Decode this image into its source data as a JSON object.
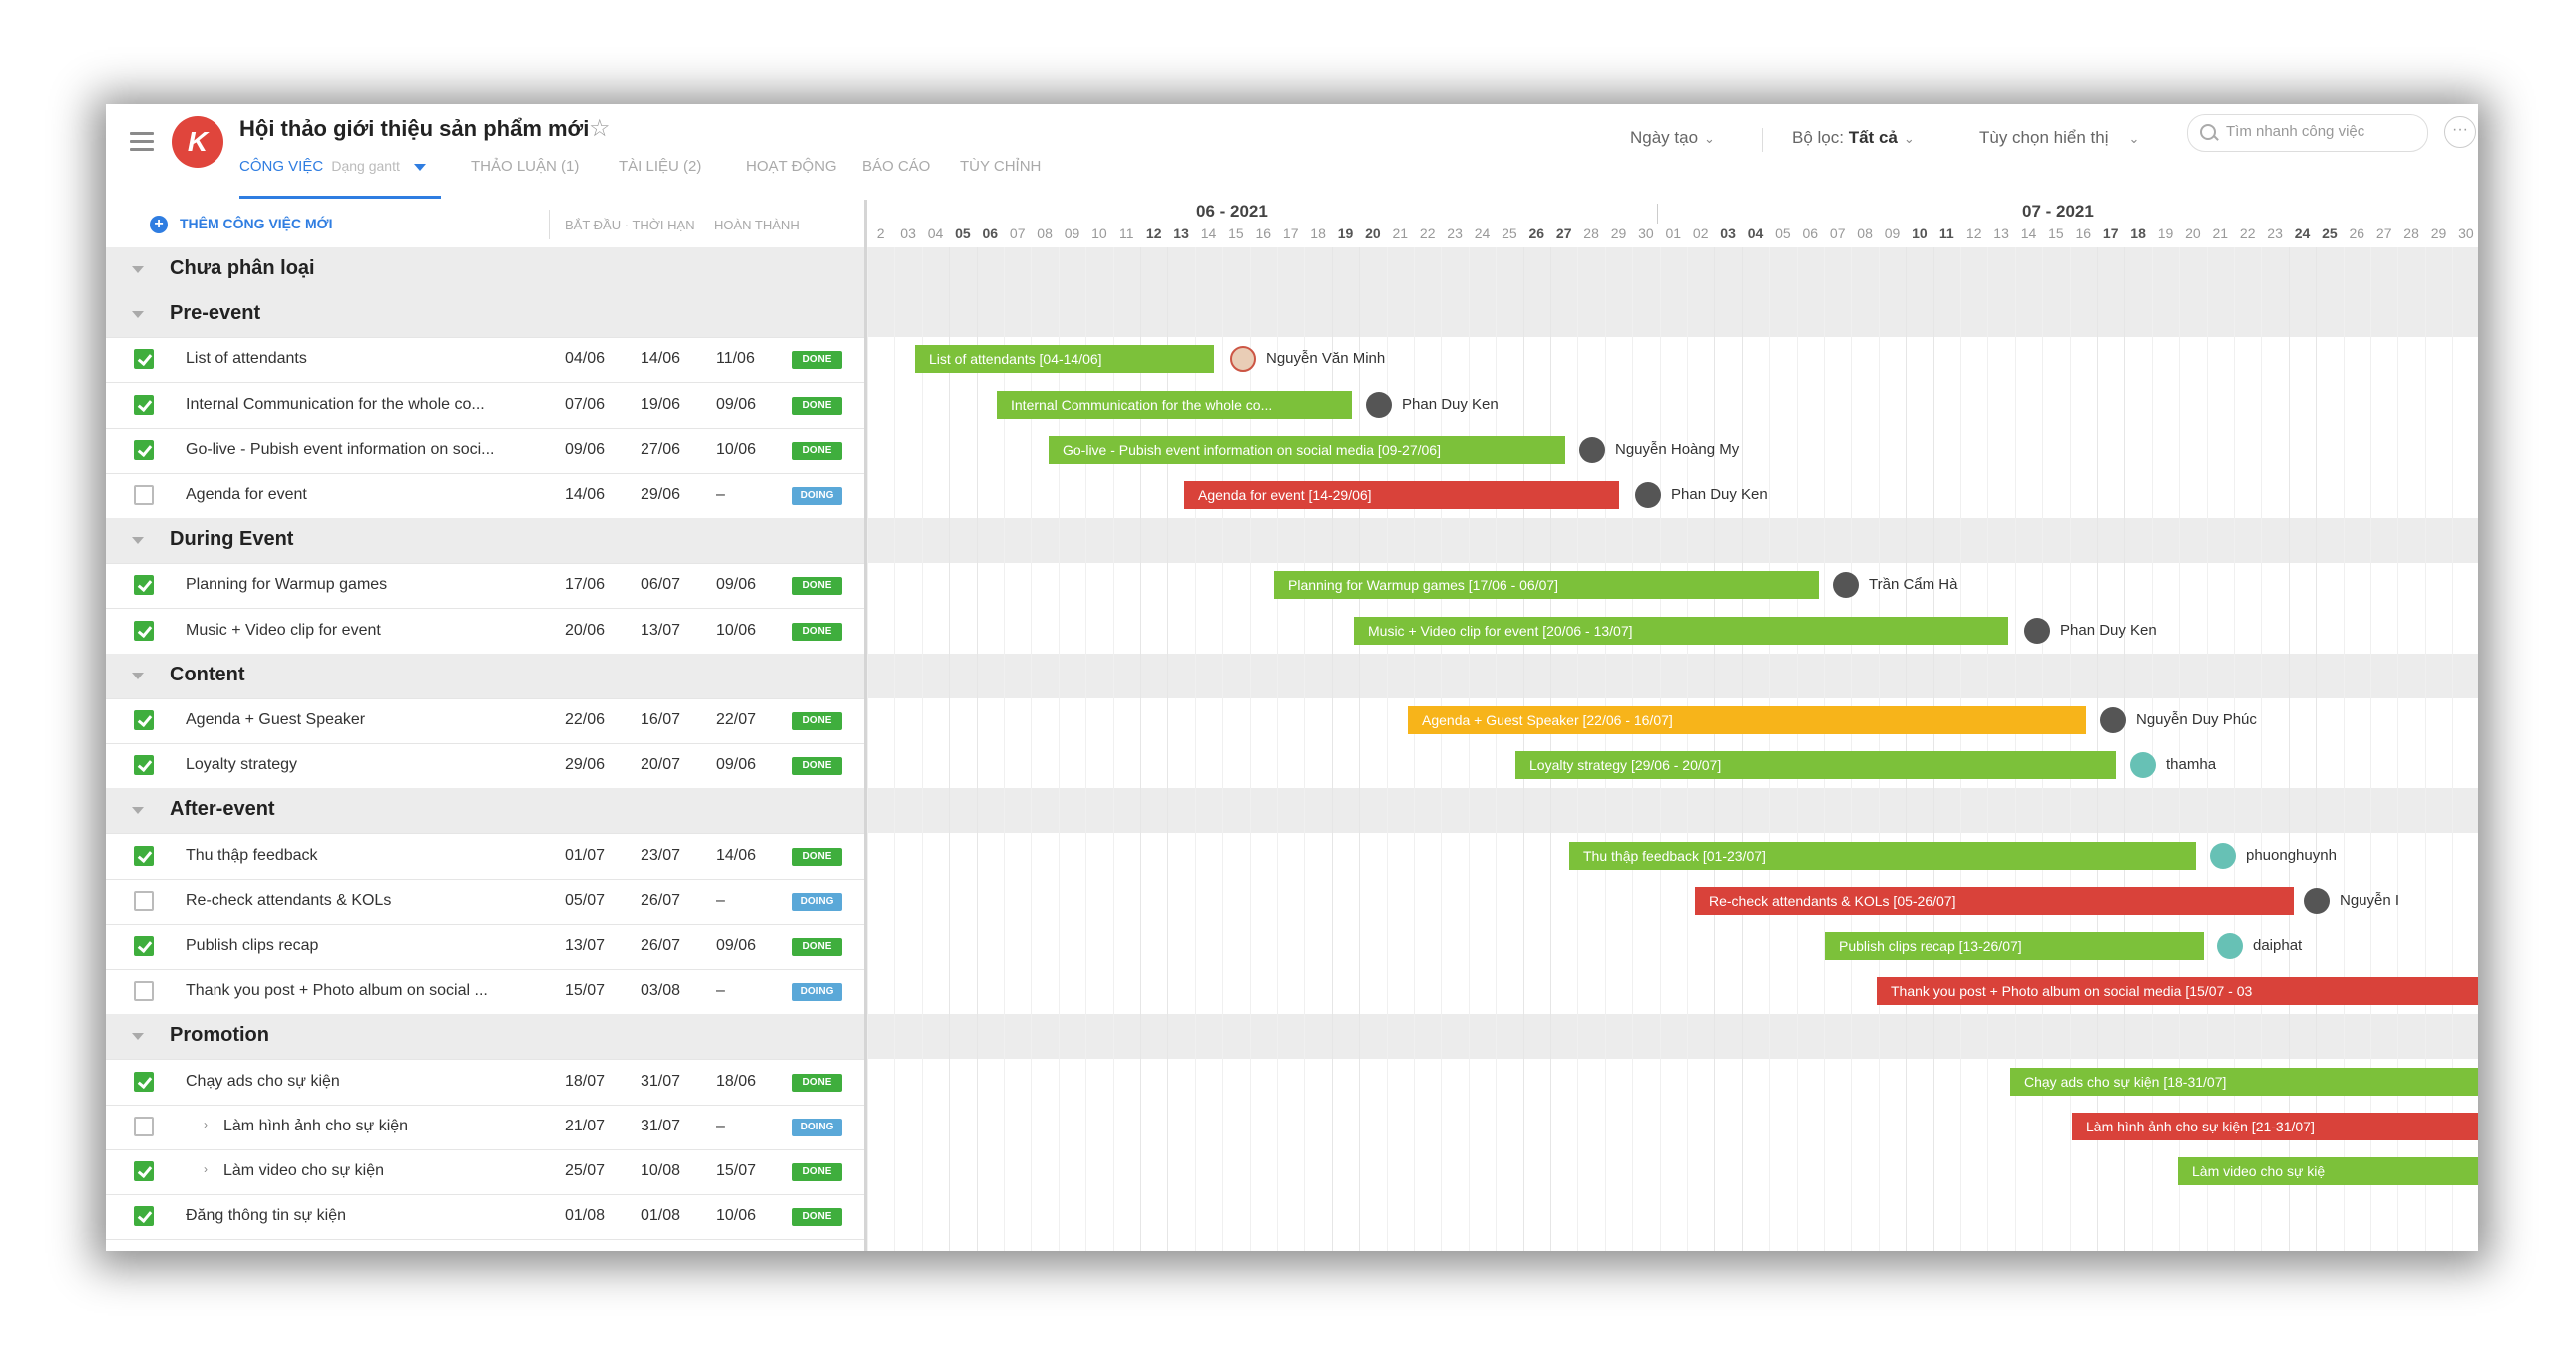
{
  "header": {
    "project_title": "Hội thảo giới thiệu sản phẩm mới",
    "tabs": [
      {
        "label": "CÔNG VIỆC",
        "sub": "Dạng gantt"
      },
      {
        "label": "THẢO LUẬN (1)"
      },
      {
        "label": "TÀI LIỆU (2)"
      },
      {
        "label": "HOẠT ĐỘNG"
      },
      {
        "label": "BÁO CÁO"
      },
      {
        "label": "TÙY CHỈNH"
      }
    ],
    "sort_label": "Ngày tạo",
    "filter_label": "Bộ lọc:",
    "filter_value": "Tất cả",
    "display_label": "Tùy chọn hiển thị",
    "search_placeholder": "Tìm nhanh công việc"
  },
  "table": {
    "add_task": "THÊM CÔNG VIỆC MỚI",
    "col_start": "BẮT ĐẦU",
    "col_due": "THỜI HẠN",
    "col_done": "HOÀN THÀNH"
  },
  "groups": [
    {
      "name": "Chưa phân loại"
    },
    {
      "name": "Pre-event"
    },
    {
      "name": "During Event"
    },
    {
      "name": "Content"
    },
    {
      "name": "After-event"
    },
    {
      "name": "Promotion"
    }
  ],
  "tasks": [
    {
      "name": "List of attendants",
      "start": "04/06",
      "due": "14/06",
      "done": "11/06",
      "status": "DONE",
      "bar": "List of attendants [04-14/06]",
      "assignee": "Nguyễn Văn Minh",
      "color": "#7cc13a"
    },
    {
      "name": "Internal Communication for the whole co...",
      "start": "07/06",
      "due": "19/06",
      "done": "09/06",
      "status": "DONE",
      "bar": "Internal Communication for the whole co...",
      "assignee": "Phan Duy Ken",
      "color": "#7cc13a"
    },
    {
      "name": "Go-live - Pubish event information on soci...",
      "start": "09/06",
      "due": "27/06",
      "done": "10/06",
      "status": "DONE",
      "bar": "Go-live - Pubish event information on social media [09-27/06]",
      "assignee": "Nguyễn Hoàng My",
      "color": "#7cc13a"
    },
    {
      "name": "Agenda for event",
      "start": "14/06",
      "due": "29/06",
      "done": "–",
      "status": "DOING",
      "bar": "Agenda for event [14-29/06]",
      "assignee": "Phan Duy Ken",
      "color": "#d9423a"
    },
    {
      "name": "Planning for Warmup games",
      "start": "17/06",
      "due": "06/07",
      "done": "09/06",
      "status": "DONE",
      "bar": "Planning for Warmup games [17/06 - 06/07]",
      "assignee": "Trần Cẩm Hà",
      "color": "#7cc13a"
    },
    {
      "name": "Music + Video clip for event",
      "start": "20/06",
      "due": "13/07",
      "done": "10/06",
      "status": "DONE",
      "bar": "Music + Video clip for event [20/06 - 13/07]",
      "assignee": "Phan Duy Ken",
      "color": "#7cc13a"
    },
    {
      "name": "Agenda + Guest Speaker",
      "start": "22/06",
      "due": "16/07",
      "done": "22/07",
      "status": "DONE",
      "bar": "Agenda + Guest Speaker [22/06 - 16/07]",
      "assignee": "Nguyễn Duy Phúc",
      "color": "#f7b41a"
    },
    {
      "name": "Loyalty strategy",
      "start": "29/06",
      "due": "20/07",
      "done": "09/06",
      "status": "DONE",
      "bar": "Loyalty strategy [29/06 - 20/07]",
      "assignee": "thamha",
      "color": "#7cc13a"
    },
    {
      "name": "Thu thập feedback",
      "start": "01/07",
      "due": "23/07",
      "done": "14/06",
      "status": "DONE",
      "bar": "Thu thập feedback [01-23/07]",
      "assignee": "phuonghuynh",
      "color": "#7cc13a"
    },
    {
      "name": "Re-check attendants & KOLs",
      "start": "05/07",
      "due": "26/07",
      "done": "–",
      "status": "DOING",
      "bar": "Re-check attendants & KOLs [05-26/07]",
      "assignee": "Nguyễn I",
      "color": "#d9423a"
    },
    {
      "name": "Publish clips recap",
      "start": "13/07",
      "due": "26/07",
      "done": "09/06",
      "status": "DONE",
      "bar": "Publish clips recap [13-26/07]",
      "assignee": "daiphat",
      "color": "#7cc13a"
    },
    {
      "name": "Thank you post + Photo album on social ...",
      "start": "15/07",
      "due": "03/08",
      "done": "–",
      "status": "DOING",
      "bar": "Thank you post + Photo album on social media [15/07 - 03",
      "assignee": "",
      "color": "#d9423a"
    },
    {
      "name": "Chạy ads cho sự kiện",
      "start": "18/07",
      "due": "31/07",
      "done": "18/06",
      "status": "DONE",
      "bar": "Chạy ads cho sự kiện [18-31/07]",
      "assignee": "",
      "color": "#7cc13a"
    },
    {
      "name": "Làm hình ảnh cho sự kiện",
      "start": "21/07",
      "due": "31/07",
      "done": "–",
      "status": "DOING",
      "bar": "Làm hình ảnh cho sự kiện [21-31/07]",
      "assignee": "",
      "color": "#d9423a"
    },
    {
      "name": "Làm video cho sự kiện",
      "start": "25/07",
      "due": "10/08",
      "done": "15/07",
      "status": "DONE",
      "bar": "Làm video cho sự kiệ",
      "assignee": "",
      "color": "#7cc13a"
    },
    {
      "name": "Đăng thông tin sự kiện",
      "start": "01/08",
      "due": "01/08",
      "done": "10/06",
      "status": "DONE",
      "bar": "",
      "assignee": "",
      "color": "#7cc13a"
    }
  ],
  "gantt": {
    "month_a": "06 - 2021",
    "month_b": "07 - 2021",
    "days": [
      "2",
      "03",
      "04",
      "05",
      "06",
      "07",
      "08",
      "09",
      "10",
      "11",
      "12",
      "13",
      "14",
      "15",
      "16",
      "17",
      "18",
      "19",
      "20",
      "21",
      "22",
      "23",
      "24",
      "25",
      "26",
      "27",
      "28",
      "29",
      "30",
      "01",
      "02",
      "03",
      "04",
      "05",
      "06",
      "07",
      "08",
      "09",
      "10",
      "11",
      "12",
      "13",
      "14",
      "15",
      "16",
      "17",
      "18",
      "19",
      "20",
      "21",
      "22",
      "23",
      "24",
      "25",
      "26",
      "27",
      "28",
      "29",
      "30",
      "3"
    ]
  }
}
